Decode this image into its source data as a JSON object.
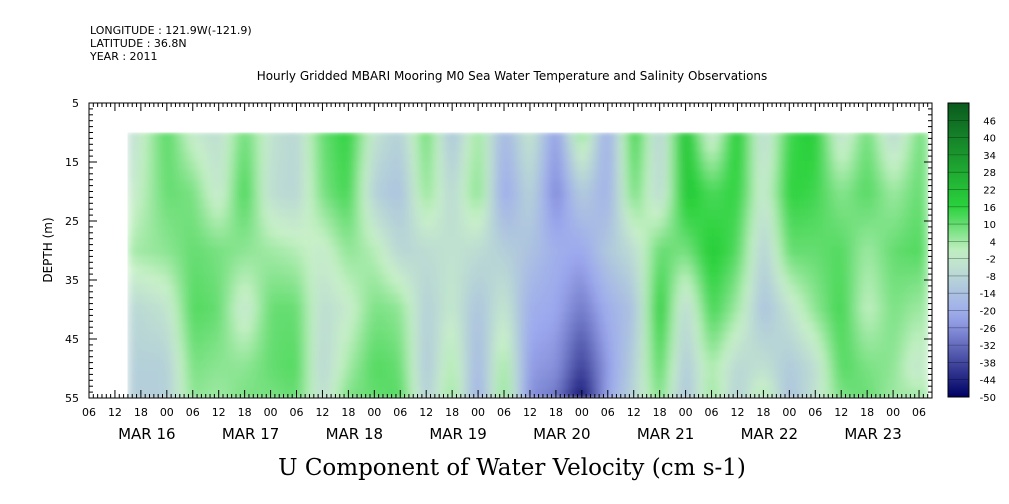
{
  "header": {
    "longitude": "LONGITUDE : 121.9W(-121.9)",
    "latitude": "LATITUDE : 36.8N",
    "year": "YEAR : 2011"
  },
  "title": "Hourly Gridded MBARI Mooring M0 Sea Water Temperature and Salinity Observations",
  "xlabel": "U Component of Water Velocity (cm s-1)",
  "chart_data": {
    "type": "heatmap",
    "title": "Hourly Gridded MBARI Mooring M0 Sea Water Temperature and Salinity Observations",
    "xlabel": "U Component of Water Velocity (cm s-1)",
    "ylabel": "DEPTH (m)",
    "y_range": [
      5,
      55
    ],
    "y_reversed": true,
    "y_ticks": [
      5,
      15,
      25,
      35,
      45,
      55
    ],
    "x_range": [
      "2011-03-15 06:00",
      "2011-03-23 09:00"
    ],
    "data_x_start": "2011-03-15 15:00",
    "data_y_start": 10,
    "x_hour_ticks": [
      "06",
      "12",
      "18",
      "00",
      "06",
      "12",
      "18",
      "00",
      "06",
      "12",
      "18",
      "00",
      "06",
      "12",
      "18",
      "00",
      "06",
      "12",
      "18",
      "00",
      "06",
      "12",
      "18",
      "00",
      "06",
      "12",
      "18",
      "00",
      "06",
      "12",
      "18",
      "00",
      "06"
    ],
    "x_day_labels": [
      "MAR 16",
      "MAR 17",
      "MAR 18",
      "MAR 19",
      "MAR 20",
      "MAR 21",
      "MAR 22",
      "MAR 23"
    ],
    "colorbar": {
      "labels": [
        "46",
        "40",
        "34",
        "28",
        "22",
        "16",
        "10",
        "4",
        "-2",
        "-8",
        "-14",
        "-20",
        "-26",
        "-32",
        "-38",
        "-44",
        "-50"
      ],
      "range": [
        -50,
        52
      ],
      "colors": {
        "high": "#0a5a1e",
        "mid_pos": "#2ad23c",
        "zero": "#c8f0c8",
        "mid_neg": "#9ca8ee",
        "low": "#000064"
      }
    },
    "profile_depths_m": [
      10,
      20,
      30,
      40,
      50,
      55
    ],
    "profile_times": [
      "2011-03-15 15:00",
      "2011-03-16 00:00",
      "2011-03-16 06:00",
      "2011-03-16 12:00",
      "2011-03-16 18:00",
      "2011-03-17 00:00",
      "2011-03-17 06:00",
      "2011-03-17 12:00",
      "2011-03-17 18:00",
      "2011-03-18 00:00",
      "2011-03-18 06:00",
      "2011-03-18 12:00",
      "2011-03-18 18:00",
      "2011-03-19 00:00",
      "2011-03-19 06:00",
      "2011-03-19 12:00",
      "2011-03-19 18:00",
      "2011-03-20 00:00",
      "2011-03-20 06:00",
      "2011-03-20 12:00",
      "2011-03-20 18:00",
      "2011-03-21 00:00",
      "2011-03-21 06:00",
      "2011-03-21 12:00",
      "2011-03-21 18:00",
      "2011-03-22 00:00",
      "2011-03-22 06:00",
      "2011-03-22 12:00",
      "2011-03-22 18:00",
      "2011-03-23 00:00",
      "2011-03-23 06:00",
      "2011-03-23 08:00"
    ],
    "u_profiles_cm_s": [
      [
        -8,
        -4,
        3,
        -8,
        -10,
        -10
      ],
      [
        12,
        10,
        6,
        -4,
        -10,
        -10
      ],
      [
        -2,
        8,
        10,
        12,
        8,
        6
      ],
      [
        -6,
        -4,
        8,
        10,
        6,
        4
      ],
      [
        10,
        14,
        6,
        -4,
        6,
        8
      ],
      [
        -4,
        -6,
        4,
        10,
        10,
        8
      ],
      [
        -8,
        -8,
        2,
        10,
        12,
        10
      ],
      [
        10,
        8,
        -2,
        -6,
        -8,
        -6
      ],
      [
        16,
        14,
        6,
        -2,
        4,
        8
      ],
      [
        -4,
        -10,
        2,
        8,
        12,
        10
      ],
      [
        -10,
        -14,
        -8,
        6,
        10,
        12
      ],
      [
        10,
        6,
        -6,
        -10,
        -12,
        -10
      ],
      [
        -14,
        -8,
        -4,
        -2,
        4,
        6
      ],
      [
        6,
        8,
        -6,
        -14,
        -18,
        -20
      ],
      [
        -18,
        -22,
        -10,
        -2,
        6,
        8
      ],
      [
        -2,
        -8,
        -14,
        -20,
        -24,
        -26
      ],
      [
        -24,
        -28,
        -20,
        -22,
        -26,
        -30
      ],
      [
        8,
        -10,
        -22,
        -30,
        -40,
        -48
      ],
      [
        -22,
        -20,
        -12,
        -20,
        -24,
        -22
      ],
      [
        16,
        10,
        -6,
        -14,
        -10,
        -8
      ],
      [
        -10,
        -8,
        10,
        18,
        12,
        8
      ],
      [
        22,
        20,
        8,
        -8,
        -12,
        -14
      ],
      [
        -6,
        12,
        18,
        14,
        4,
        6
      ],
      [
        20,
        16,
        12,
        4,
        -8,
        -10
      ],
      [
        -8,
        -4,
        -10,
        -14,
        -4,
        4
      ],
      [
        14,
        16,
        10,
        -4,
        -12,
        -14
      ],
      [
        18,
        14,
        10,
        6,
        -6,
        -4
      ],
      [
        -6,
        6,
        12,
        14,
        12,
        8
      ],
      [
        10,
        12,
        4,
        0,
        8,
        10
      ],
      [
        -8,
        4,
        10,
        8,
        6,
        4
      ],
      [
        8,
        10,
        12,
        4,
        -4,
        4
      ],
      [
        10,
        8,
        10,
        6,
        4,
        6
      ]
    ]
  }
}
